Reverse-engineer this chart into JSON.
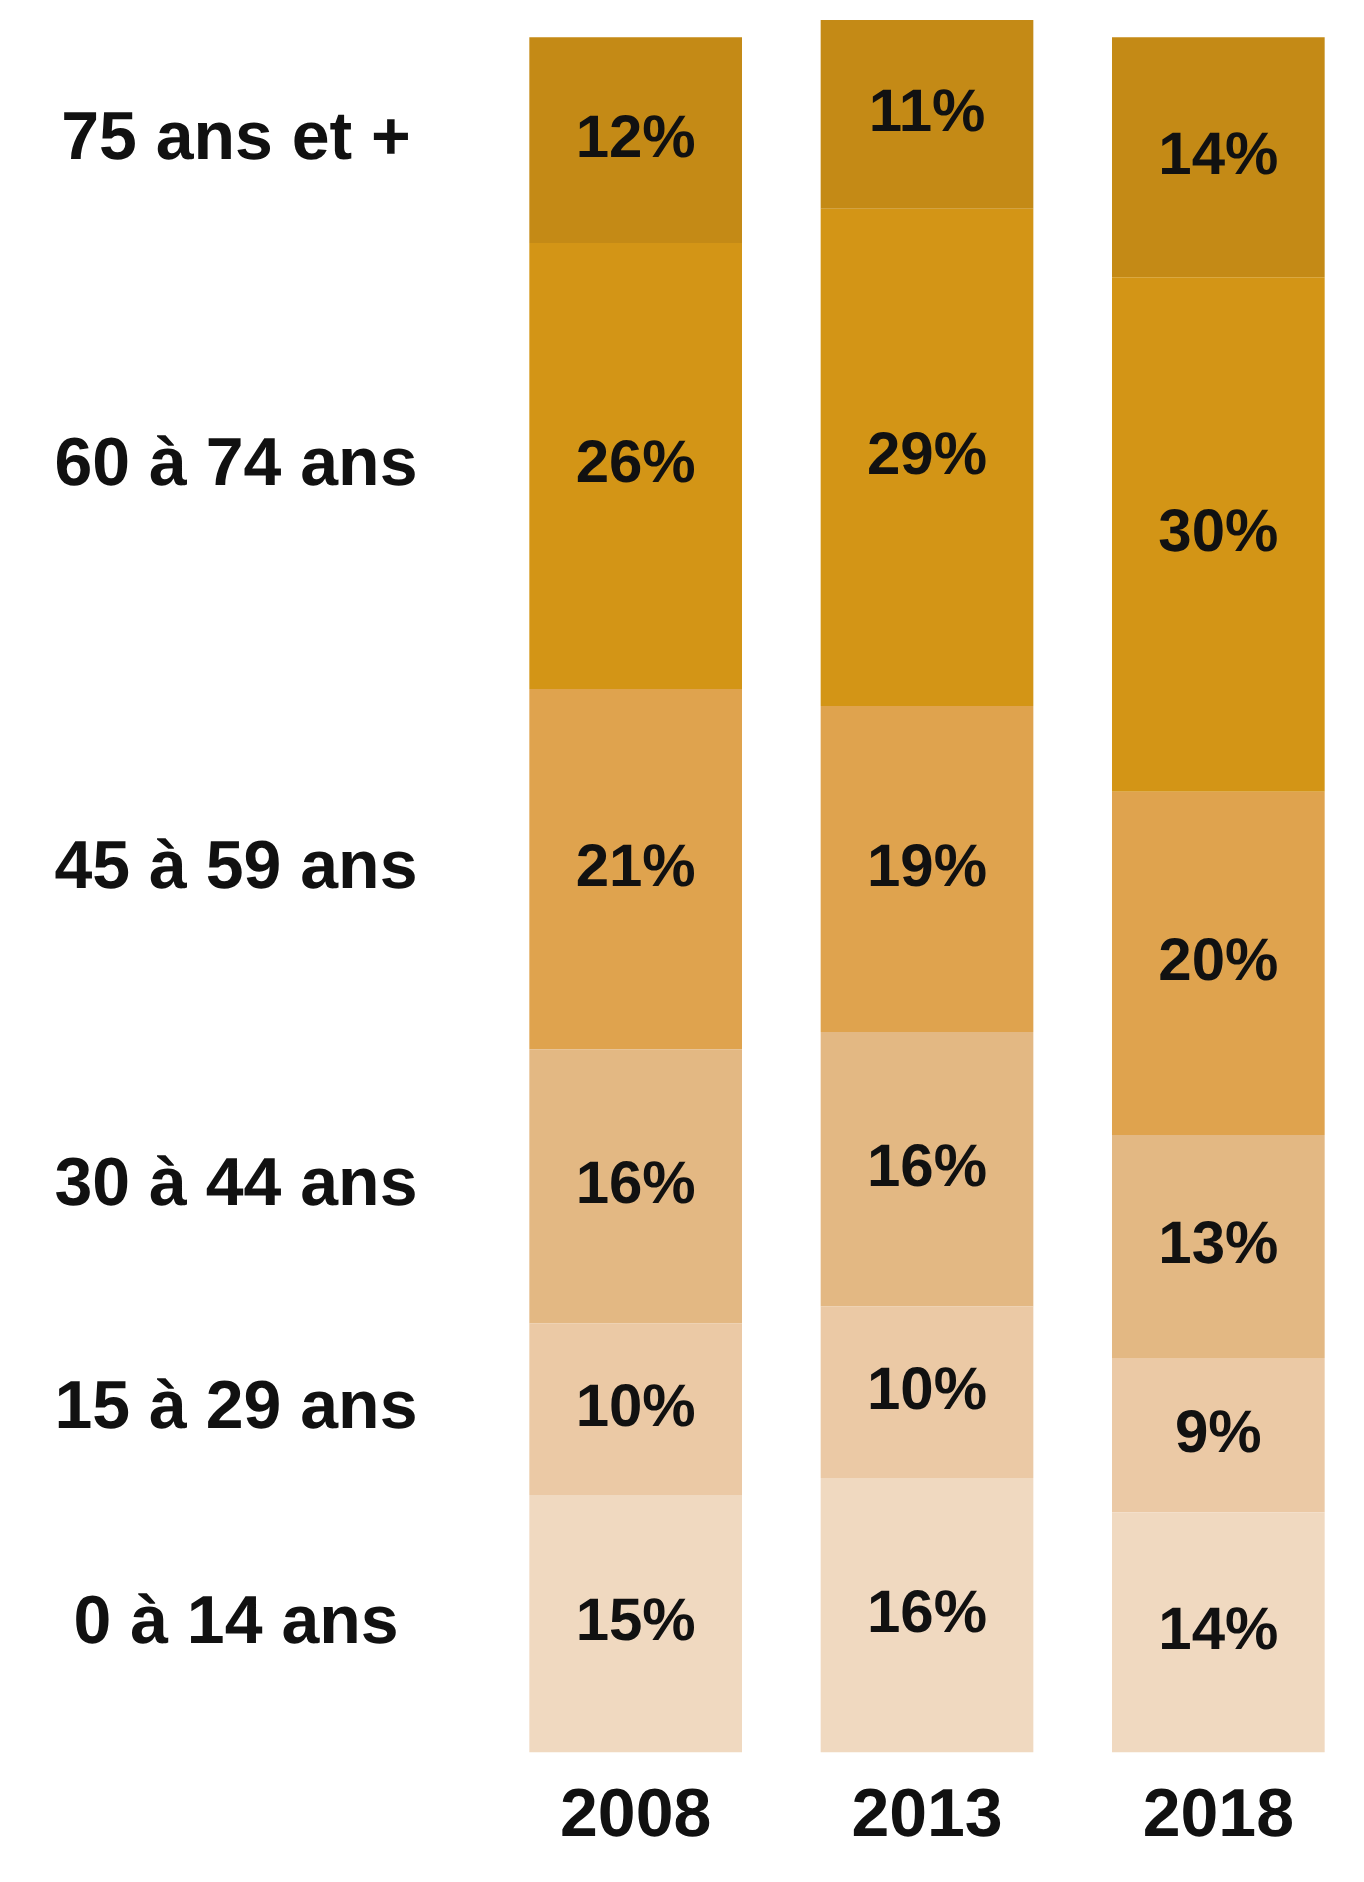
{
  "chart_data": {
    "type": "bar",
    "stacked": true,
    "legend": false,
    "grid": false,
    "categories": [
      "2008",
      "2013",
      "2018"
    ],
    "series": [
      {
        "name": "0 à 14 ans",
        "color": "#f0d9c0",
        "values": [
          15,
          16,
          14
        ],
        "value_labels": [
          "15%",
          "16%",
          "14%"
        ]
      },
      {
        "name": "15 à 29 ans",
        "color": "#ebc9a5",
        "values": [
          10,
          10,
          9
        ],
        "value_labels": [
          "10%",
          "10%",
          "9%"
        ]
      },
      {
        "name": "30 à 44 ans",
        "color": "#e3b883",
        "values": [
          16,
          16,
          13
        ],
        "value_labels": [
          "16%",
          "16%",
          "13%"
        ]
      },
      {
        "name": "45 à 59 ans",
        "color": "#dfa34e",
        "values": [
          21,
          19,
          20
        ],
        "value_labels": [
          "21%",
          "19%",
          "20%"
        ]
      },
      {
        "name": "60 à 74 ans",
        "color": "#d39516",
        "values": [
          26,
          29,
          30
        ],
        "value_labels": [
          "26%",
          "29%",
          "30%"
        ]
      },
      {
        "name": "75 ans et +",
        "color": "#c48a16",
        "values": [
          12,
          11,
          14
        ],
        "value_labels": [
          "12%",
          "11%",
          "14%"
        ]
      }
    ]
  }
}
